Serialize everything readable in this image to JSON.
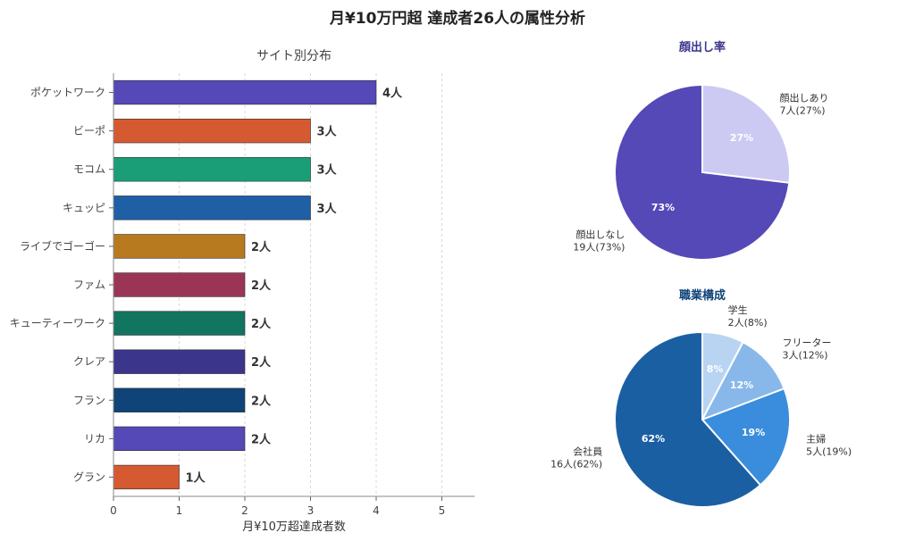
{
  "figure_title": "月¥10万円超 達成者26人の属性分析",
  "chart_data": [
    {
      "type": "bar",
      "orientation": "horizontal",
      "title": "サイト別分布",
      "xlabel": "月¥10万超達成者数",
      "ylabel": "",
      "xlim": [
        0,
        5.5
      ],
      "xticks": [
        0,
        1,
        2,
        3,
        4,
        5
      ],
      "grid": "vertical-dashed",
      "unit_suffix": "人",
      "categories": [
        "ポケットワーク",
        "ビーポ",
        "モコム",
        "キュッピ",
        "ライブでゴーゴー",
        "ファム",
        "キューティーワーク",
        "クレア",
        "フラン",
        "リカ",
        "グラン"
      ],
      "values": [
        4,
        3,
        3,
        3,
        2,
        2,
        2,
        2,
        2,
        2,
        1
      ],
      "value_labels": [
        "4人",
        "3人",
        "3人",
        "3人",
        "2人",
        "2人",
        "2人",
        "2人",
        "2人",
        "2人",
        "1人"
      ],
      "colors": [
        "#5548b7",
        "#d65a31",
        "#1a9e78",
        "#1f5fa6",
        "#b87a1e",
        "#9b3556",
        "#117560",
        "#3b358c",
        "#0f4478",
        "#5548b7",
        "#d65a31"
      ]
    },
    {
      "type": "pie",
      "title": "顔出し率",
      "title_color": "#3b358c",
      "slices": [
        {
          "label": "顔出しあり",
          "value": 7,
          "detail": "7人(27%)",
          "pct_label": "27%",
          "color": "#cccaf3",
          "pct_color": "#ffffff"
        },
        {
          "label": "顔出しなし",
          "value": 19,
          "detail": "19人(73%)",
          "pct_label": "73%",
          "color": "#5548b7",
          "pct_color": "#ffffff"
        }
      ]
    },
    {
      "type": "pie",
      "title": "職業構成",
      "title_color": "#0f4478",
      "slices": [
        {
          "label": "学生",
          "value": 2,
          "detail": "2人(8%)",
          "pct_label": "8%",
          "color": "#b9d4f2",
          "pct_color": "#ffffff"
        },
        {
          "label": "フリーター",
          "value": 3,
          "detail": "3人(12%)",
          "pct_label": "12%",
          "color": "#88b8ea",
          "pct_color": "#ffffff"
        },
        {
          "label": "主婦",
          "value": 5,
          "detail": "5人(19%)",
          "pct_label": "19%",
          "color": "#3a8ddc",
          "pct_color": "#ffffff"
        },
        {
          "label": "会社員",
          "value": 16,
          "detail": "16人(62%)",
          "pct_label": "62%",
          "color": "#1b5fa3",
          "pct_color": "#ffffff"
        }
      ]
    }
  ]
}
